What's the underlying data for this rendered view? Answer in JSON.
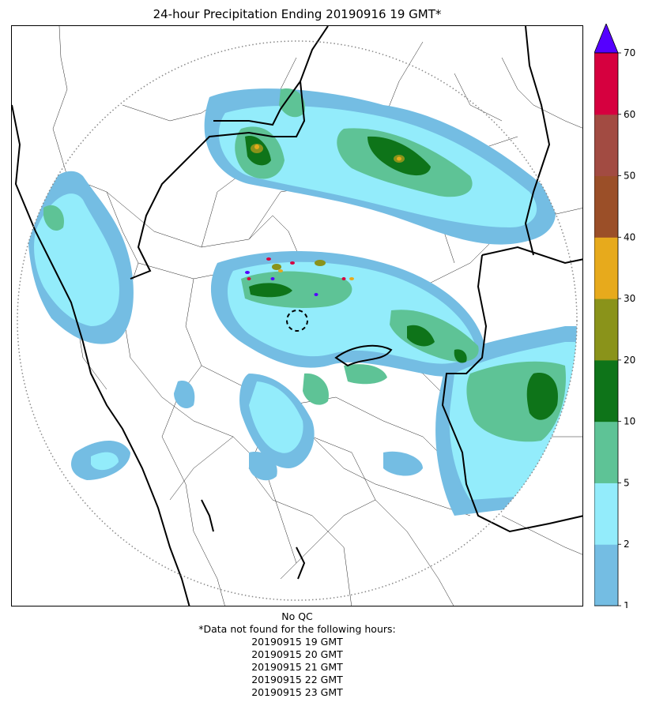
{
  "title": "24-hour Precipitation Ending 20190916 19 GMT*",
  "colorbar": {
    "ticks": [
      "1",
      "2",
      "5",
      "10",
      "20",
      "30",
      "40",
      "50",
      "60",
      "70"
    ],
    "colors": [
      "#74bde3",
      "#93ecfb",
      "#5ec396",
      "#0e7419",
      "#8a931a",
      "#e7aa1c",
      "#9b4f28",
      "#a24b42",
      "#d6003f"
    ],
    "extend_color": "#5500ff"
  },
  "footer": {
    "qc": "No QC",
    "note": "*Data not found for the following hours:",
    "hours": [
      "20190915 19 GMT",
      "20190915 20 GMT",
      "20190915 21 GMT",
      "20190915 22 GMT",
      "20190915 23 GMT"
    ]
  },
  "map": {
    "range_ring": "dotted",
    "radar_marker": "dashed-circle"
  }
}
